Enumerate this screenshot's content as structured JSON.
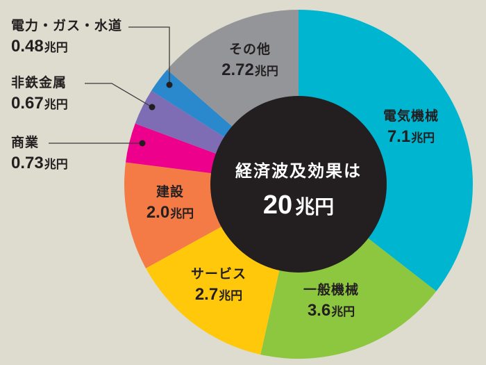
{
  "chart_data": {
    "type": "pie",
    "subtype": "donut",
    "title": "経済波及効果は",
    "total": {
      "value": "20",
      "unit": "兆円"
    },
    "unit": "兆円",
    "start_angle": "12 o'clock, clockwise",
    "slices": [
      {
        "label": "電気機械",
        "value": 7.1,
        "display": "7.1",
        "color": "#00b5cf"
      },
      {
        "label": "一般機械",
        "value": 3.6,
        "display": "3.6",
        "color": "#8dc63f"
      },
      {
        "label": "サービス",
        "value": 2.7,
        "display": "2.7",
        "color": "#ffc80a"
      },
      {
        "label": "建設",
        "value": 2.0,
        "display": "2.0",
        "color": "#f47b45"
      },
      {
        "label": "商業",
        "value": 0.73,
        "display": "0.73",
        "color": "#ec008c"
      },
      {
        "label": "非鉄金属",
        "value": 0.67,
        "display": "0.67",
        "color": "#7e6db5"
      },
      {
        "label": "電力・ガス・水道",
        "value": 0.48,
        "display": "0.48",
        "color": "#2a88cc"
      },
      {
        "label": "その他",
        "value": 2.72,
        "display": "2.72",
        "color": "#939598"
      }
    ],
    "center_color": "#231f20",
    "background": "#dedbcf"
  },
  "labels": {
    "denki": {
      "name": "電気機械",
      "num": "7.1",
      "unit": "兆円"
    },
    "ippan": {
      "name": "一般機械",
      "num": "3.6",
      "unit": "兆円"
    },
    "service": {
      "name": "サービス",
      "num": "2.7",
      "unit": "兆円"
    },
    "kensetsu": {
      "name": "建設",
      "num": "2.0",
      "unit": "兆円"
    },
    "shogyo": {
      "name": "商業",
      "num": "0.73",
      "unit": "兆円"
    },
    "hitetsu": {
      "name": "非鉄金属",
      "num": "0.67",
      "unit": "兆円"
    },
    "denryoku": {
      "name": "電力・ガス・水道",
      "num": "0.48",
      "unit": "兆円"
    },
    "sonota": {
      "name": "その他",
      "num": "2.72",
      "unit": "兆円"
    }
  },
  "center": {
    "title": "経済波及効果は",
    "num": "20",
    "unit": "兆円"
  }
}
